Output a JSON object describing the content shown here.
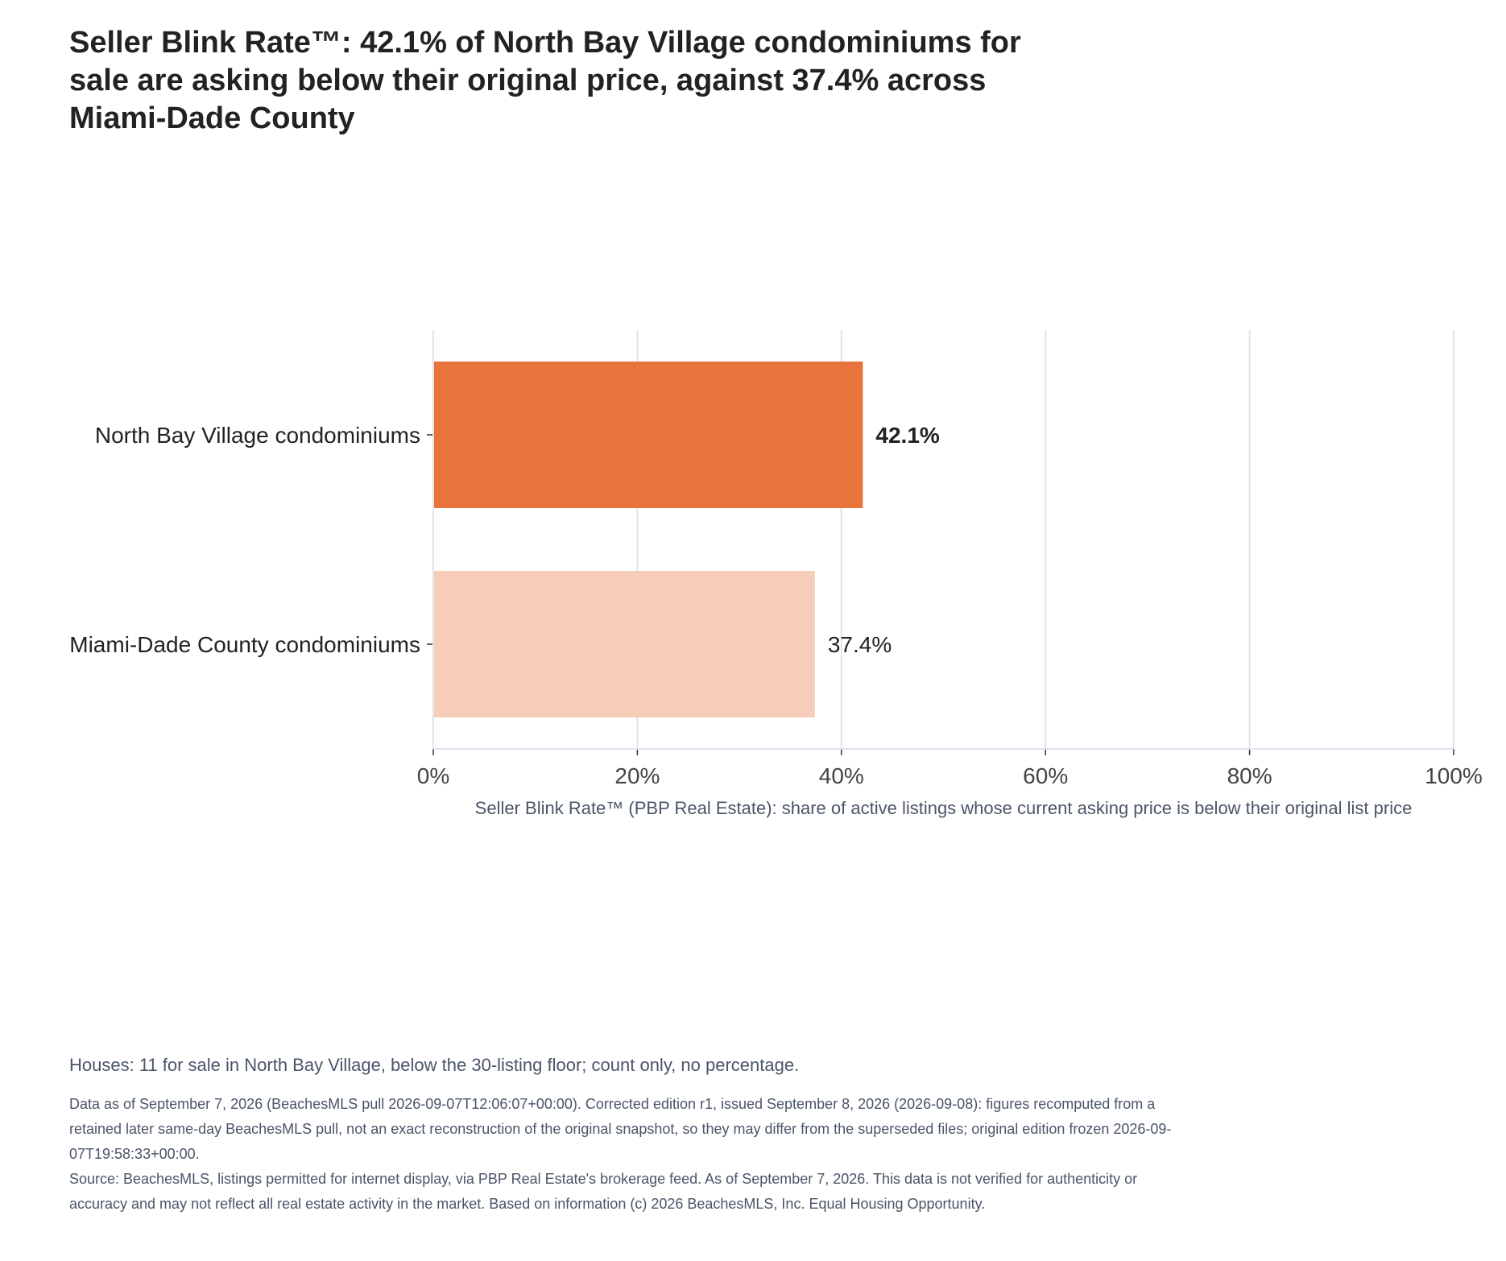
{
  "page": {
    "title": "Seller Blink Rate™: 42.1% of North Bay Village condominiums for sale are asking below their original price, against 37.4% across Miami-Dade County",
    "note": "Houses: 11 for sale in North Bay Village, below the 30-listing floor; count only, no percentage.",
    "data_note": "Data as of September 7, 2026 (BeachesMLS pull 2026-09-07T12:06:07+00:00). Corrected edition r1, issued September 8, 2026 (2026-09-08): figures recomputed from a retained later same-day BeachesMLS pull, not an exact reconstruction of the original snapshot, so they may differ from the superseded files; original edition frozen 2026-09-07T19:58:33+00:00.",
    "source": "Source: BeachesMLS, listings permitted for internet display, via PBP Real Estate's brokerage feed. As of September 7, 2026. This data is not verified for authenticity or accuracy and may not reflect all real estate activity in the market. Based on information (c) 2026 BeachesMLS, Inc. Equal Housing Opportunity."
  },
  "chart_data": {
    "type": "bar",
    "orientation": "horizontal",
    "categories": [
      "North Bay Village condominiums",
      "Miami-Dade County condominiums"
    ],
    "values": [
      42.1,
      37.4
    ],
    "value_labels": [
      "42.1%",
      "37.4%"
    ],
    "highlight": [
      true,
      false
    ],
    "colors": [
      "#e8743b",
      "#f6cdb9"
    ],
    "xlabel": "Seller Blink Rate™ (PBP Real Estate): share of active listings whose current asking price is below their original list price",
    "ylabel": "",
    "xlim": [
      0,
      100
    ],
    "xticks": [
      0,
      20,
      40,
      60,
      80,
      100
    ],
    "xtick_labels": [
      "0%",
      "20%",
      "40%",
      "60%",
      "80%",
      "100%"
    ],
    "grid": true,
    "legend": "none"
  }
}
